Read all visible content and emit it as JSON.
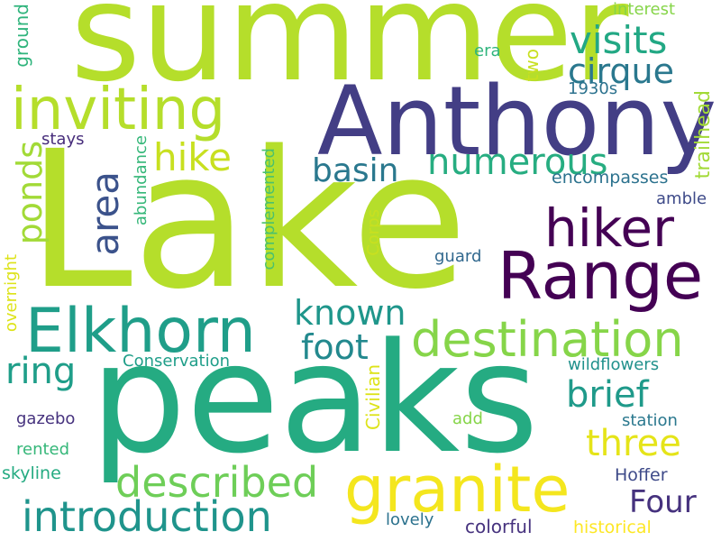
{
  "words": [
    {
      "text": "summer",
      "color": "#b5de2b"
    },
    {
      "text": "Lake",
      "color": "#b5de2b"
    },
    {
      "text": "peaks",
      "color": "#25ab82"
    },
    {
      "text": "Anthony",
      "color": "#433e85"
    },
    {
      "text": "hiker",
      "color": "#440154"
    },
    {
      "text": "Range",
      "color": "#440154"
    },
    {
      "text": "inviting",
      "color": "#b5de2b"
    },
    {
      "text": "Elkhorn",
      "color": "#1f9e89"
    },
    {
      "text": "granite",
      "color": "#f4e61e"
    },
    {
      "text": "destination",
      "color": "#86d549"
    },
    {
      "text": "introduction",
      "color": "#1f948c"
    },
    {
      "text": "described",
      "color": "#6ece58"
    },
    {
      "text": "visits",
      "color": "#22a884"
    },
    {
      "text": "cirque",
      "color": "#2a788e"
    },
    {
      "text": "numerous",
      "color": "#27ad81"
    },
    {
      "text": "basin",
      "color": "#2a788e"
    },
    {
      "text": "hike",
      "color": "#c8e020"
    },
    {
      "text": "area",
      "color": "#3b528b"
    },
    {
      "text": "ponds",
      "color": "#a2da37"
    },
    {
      "text": "known",
      "color": "#1f968b"
    },
    {
      "text": "foot",
      "color": "#23898e"
    },
    {
      "text": "ring",
      "color": "#1f9e89"
    },
    {
      "text": "brief",
      "color": "#1f9a8a"
    },
    {
      "text": "three",
      "color": "#e5e419"
    },
    {
      "text": "Four",
      "color": "#46327e"
    },
    {
      "text": "interest",
      "color": "#86d549"
    },
    {
      "text": "era",
      "color": "#2fb47c"
    },
    {
      "text": "two",
      "color": "#c8e020"
    },
    {
      "text": "ground",
      "color": "#2fb47c"
    },
    {
      "text": "1930s",
      "color": "#2c728e"
    },
    {
      "text": "stays",
      "color": "#472d7b"
    },
    {
      "text": "encompasses",
      "color": "#2c728e"
    },
    {
      "text": "amble",
      "color": "#3e4a89"
    },
    {
      "text": "trailhead",
      "color": "#a2da37"
    },
    {
      "text": "abundance",
      "color": "#35b779"
    },
    {
      "text": "complemented",
      "color": "#4ac16d"
    },
    {
      "text": "Corps",
      "color": "#c8e020"
    },
    {
      "text": "guard",
      "color": "#31688e"
    },
    {
      "text": "overnight",
      "color": "#dde318"
    },
    {
      "text": "Conservation",
      "color": "#1f9e89"
    },
    {
      "text": "wildflowers",
      "color": "#21918c"
    },
    {
      "text": "gazebo",
      "color": "#46327e"
    },
    {
      "text": "Civilian",
      "color": "#dde318"
    },
    {
      "text": "add",
      "color": "#86d549"
    },
    {
      "text": "station",
      "color": "#2a788e"
    },
    {
      "text": "rented",
      "color": "#35b779"
    },
    {
      "text": "skyline",
      "color": "#25ab82"
    },
    {
      "text": "Hoffer",
      "color": "#3e4a89"
    },
    {
      "text": "lovely",
      "color": "#2c728e"
    },
    {
      "text": "colorful",
      "color": "#46327e"
    },
    {
      "text": "historical",
      "color": "#fde725"
    }
  ]
}
